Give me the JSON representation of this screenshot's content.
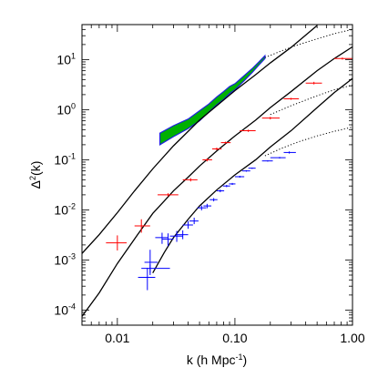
{
  "chart_data": {
    "type": "scatter",
    "x_scale": "log",
    "y_scale": "log",
    "xlabel": "k (h Mpc",
    "xlabel_sup": "-1",
    "xlabel_suffix": ")",
    "ylabel": "Δ",
    "ylabel_sup": "2",
    "ylabel_suffix": "(k)",
    "xlim": [
      0.005,
      1.0
    ],
    "ylim": [
      5e-05,
      50
    ],
    "x_ticks": [
      {
        "value": 0.01,
        "label": "0.01"
      },
      {
        "value": 0.1,
        "label": "0.10"
      },
      {
        "value": 1.0,
        "label": "1.00"
      }
    ],
    "y_ticks": [
      {
        "value": 0.0001,
        "base": "10",
        "exp": "-4"
      },
      {
        "value": 0.001,
        "base": "10",
        "exp": "-3"
      },
      {
        "value": 0.01,
        "base": "10",
        "exp": "-2"
      },
      {
        "value": 0.1,
        "base": "10",
        "exp": "-1"
      },
      {
        "value": 1,
        "base": "10",
        "exp": "0"
      },
      {
        "value": 10,
        "base": "10",
        "exp": "1"
      }
    ],
    "curves": [
      {
        "style": "solid",
        "color": "#000000",
        "points": [
          [
            0.005,
            0.00135
          ],
          [
            0.007,
            0.0032
          ],
          [
            0.01,
            0.0088
          ],
          [
            0.014,
            0.024
          ],
          [
            0.02,
            0.066
          ],
          [
            0.03,
            0.19
          ],
          [
            0.05,
            0.62
          ],
          [
            0.07,
            1.2
          ],
          [
            0.1,
            2.4
          ],
          [
            0.15,
            5.0
          ],
          [
            0.2,
            8.6
          ],
          [
            0.3,
            17.5
          ],
          [
            0.5,
            48
          ]
        ]
      },
      {
        "style": "dotted",
        "color": "#000000",
        "points": [
          [
            0.18,
            11
          ],
          [
            0.25,
            15
          ],
          [
            0.35,
            20
          ],
          [
            0.5,
            26
          ],
          [
            0.7,
            33
          ],
          [
            1.0,
            40
          ]
        ]
      },
      {
        "style": "solid",
        "color": "#000000",
        "points": [
          [
            0.005,
            7.5e-05
          ],
          [
            0.007,
            0.00022
          ],
          [
            0.01,
            0.00085
          ],
          [
            0.015,
            0.0033
          ],
          [
            0.02,
            0.0085
          ],
          [
            0.025,
            0.015
          ],
          [
            0.03,
            0.024
          ],
          [
            0.04,
            0.045
          ],
          [
            0.05,
            0.075
          ],
          [
            0.07,
            0.15
          ],
          [
            0.1,
            0.3
          ],
          [
            0.15,
            0.62
          ],
          [
            0.2,
            1.1
          ],
          [
            0.3,
            2.3
          ],
          [
            0.5,
            6
          ],
          [
            0.7,
            10.5
          ],
          [
            1.0,
            18
          ]
        ]
      },
      {
        "style": "dotted",
        "color": "#000000",
        "points": [
          [
            0.2,
            0.8
          ],
          [
            0.3,
            1.2
          ],
          [
            0.5,
            1.9
          ],
          [
            0.7,
            2.5
          ],
          [
            1.0,
            3.1
          ]
        ]
      },
      {
        "style": "solid",
        "color": "#000000",
        "points": [
          [
            0.02,
            0.00055
          ],
          [
            0.025,
            0.0014
          ],
          [
            0.03,
            0.0028
          ],
          [
            0.04,
            0.0065
          ],
          [
            0.05,
            0.012
          ],
          [
            0.07,
            0.025
          ],
          [
            0.1,
            0.05
          ],
          [
            0.15,
            0.1
          ],
          [
            0.2,
            0.18
          ],
          [
            0.3,
            0.38
          ],
          [
            0.5,
            1.1
          ],
          [
            0.7,
            2.2
          ],
          [
            1.0,
            4.2
          ]
        ]
      },
      {
        "style": "dotted",
        "color": "#000000",
        "points": [
          [
            0.18,
            0.12
          ],
          [
            0.25,
            0.17
          ],
          [
            0.35,
            0.23
          ],
          [
            0.5,
            0.3
          ],
          [
            0.7,
            0.37
          ],
          [
            1.0,
            0.45
          ]
        ]
      }
    ],
    "bands": [
      {
        "color": "#00b000",
        "edge_color": "#2020e0",
        "x": [
          0.023,
          0.03,
          0.04,
          0.05,
          0.06,
          0.07,
          0.08,
          0.09,
          0.1,
          0.12,
          0.14,
          0.16,
          0.18
        ],
        "y_low": [
          0.2,
          0.29,
          0.42,
          0.6,
          0.9,
          1.25,
          1.6,
          2.1,
          2.5,
          3.8,
          5.5,
          7.8,
          10.5
        ],
        "y_high": [
          0.34,
          0.48,
          0.65,
          0.95,
          1.3,
          1.8,
          2.3,
          2.9,
          3.3,
          4.8,
          6.6,
          9,
          12
        ]
      }
    ],
    "series": [
      {
        "color": "#ff0000",
        "points": [
          {
            "x": 0.01,
            "y": 0.0022,
            "x_lo": 0.008,
            "x_hi": 0.012,
            "y_lo": 0.00155,
            "y_hi": 0.0031
          },
          {
            "x": 0.016,
            "y": 0.0048,
            "x_lo": 0.014,
            "x_hi": 0.019,
            "y_lo": 0.0035,
            "y_hi": 0.0065
          },
          {
            "x": 0.027,
            "y": 0.02,
            "x_lo": 0.022,
            "x_hi": 0.033,
            "y_lo": 0.0185,
            "y_hi": 0.0215
          },
          {
            "x": 0.042,
            "y": 0.04,
            "x_lo": 0.036,
            "x_hi": 0.048,
            "y_lo": 0.037,
            "y_hi": 0.043
          },
          {
            "x": 0.058,
            "y": 0.1,
            "x_lo": 0.053,
            "x_hi": 0.064,
            "y_lo": 0.093,
            "y_hi": 0.107
          },
          {
            "x": 0.07,
            "y": 0.165,
            "x_lo": 0.064,
            "x_hi": 0.077,
            "y_lo": 0.155,
            "y_hi": 0.175
          },
          {
            "x": 0.083,
            "y": 0.22,
            "x_lo": 0.076,
            "x_hi": 0.092,
            "y_lo": 0.21,
            "y_hi": 0.23
          },
          {
            "x": 0.13,
            "y": 0.38,
            "x_lo": 0.11,
            "x_hi": 0.15,
            "y_lo": 0.36,
            "y_hi": 0.4
          },
          {
            "x": 0.2,
            "y": 0.68,
            "x_lo": 0.17,
            "x_hi": 0.24,
            "y_lo": 0.64,
            "y_hi": 0.72
          },
          {
            "x": 0.3,
            "y": 1.65,
            "x_lo": 0.26,
            "x_hi": 0.35,
            "y_lo": 1.58,
            "y_hi": 1.72
          },
          {
            "x": 0.47,
            "y": 3.4,
            "x_lo": 0.4,
            "x_hi": 0.55,
            "y_lo": 3.2,
            "y_hi": 3.6
          },
          {
            "x": 0.82,
            "y": 10.5,
            "x_lo": 0.7,
            "x_hi": 1.0,
            "y_lo": 10.0,
            "y_hi": 11.0
          }
        ]
      },
      {
        "color": "#0000ff",
        "points": [
          {
            "x": 0.018,
            "y": 0.00045,
            "x_lo": 0.015,
            "x_hi": 0.021,
            "y_lo": 0.00025,
            "y_hi": 0.0007
          },
          {
            "x": 0.019,
            "y": 0.0009,
            "x_lo": 0.017,
            "x_hi": 0.022,
            "y_lo": 0.0005,
            "y_hi": 0.0016
          },
          {
            "x": 0.019,
            "y": 0.00068,
            "x_lo": 0.016,
            "x_hi": 0.028,
            "y_lo": 0.00055,
            "y_hi": 0.00082
          },
          {
            "x": 0.024,
            "y": 0.0028,
            "x_lo": 0.021,
            "x_hi": 0.027,
            "y_lo": 0.0021,
            "y_hi": 0.0035
          },
          {
            "x": 0.027,
            "y": 0.0026,
            "x_lo": 0.024,
            "x_hi": 0.03,
            "y_lo": 0.0019,
            "y_hi": 0.0034
          },
          {
            "x": 0.032,
            "y": 0.003,
            "x_lo": 0.028,
            "x_hi": 0.036,
            "y_lo": 0.0023,
            "y_hi": 0.0038
          },
          {
            "x": 0.036,
            "y": 0.0032,
            "x_lo": 0.032,
            "x_hi": 0.04,
            "y_lo": 0.0026,
            "y_hi": 0.0039
          },
          {
            "x": 0.04,
            "y": 0.005,
            "x_lo": 0.036,
            "x_hi": 0.044,
            "y_lo": 0.0042,
            "y_hi": 0.006
          },
          {
            "x": 0.045,
            "y": 0.006,
            "x_lo": 0.041,
            "x_hi": 0.049,
            "y_lo": 0.0052,
            "y_hi": 0.007
          },
          {
            "x": 0.052,
            "y": 0.011,
            "x_lo": 0.048,
            "x_hi": 0.057,
            "y_lo": 0.0098,
            "y_hi": 0.0122
          },
          {
            "x": 0.058,
            "y": 0.012,
            "x_lo": 0.054,
            "x_hi": 0.063,
            "y_lo": 0.0108,
            "y_hi": 0.0132
          },
          {
            "x": 0.066,
            "y": 0.016,
            "x_lo": 0.061,
            "x_hi": 0.071,
            "y_lo": 0.0148,
            "y_hi": 0.0172
          },
          {
            "x": 0.075,
            "y": 0.024,
            "x_lo": 0.07,
            "x_hi": 0.081,
            "y_lo": 0.0225,
            "y_hi": 0.0255
          },
          {
            "x": 0.085,
            "y": 0.03,
            "x_lo": 0.079,
            "x_hi": 0.091,
            "y_lo": 0.0284,
            "y_hi": 0.0316
          },
          {
            "x": 0.095,
            "y": 0.033,
            "x_lo": 0.089,
            "x_hi": 0.101,
            "y_lo": 0.0315,
            "y_hi": 0.0345
          },
          {
            "x": 0.11,
            "y": 0.046,
            "x_lo": 0.1,
            "x_hi": 0.12,
            "y_lo": 0.044,
            "y_hi": 0.048
          },
          {
            "x": 0.125,
            "y": 0.06,
            "x_lo": 0.115,
            "x_hi": 0.135,
            "y_lo": 0.058,
            "y_hi": 0.062
          },
          {
            "x": 0.14,
            "y": 0.068,
            "x_lo": 0.13,
            "x_hi": 0.15,
            "y_lo": 0.066,
            "y_hi": 0.07
          },
          {
            "x": 0.19,
            "y": 0.095,
            "x_lo": 0.17,
            "x_hi": 0.21,
            "y_lo": 0.092,
            "y_hi": 0.098
          },
          {
            "x": 0.24,
            "y": 0.11,
            "x_lo": 0.2,
            "x_hi": 0.27,
            "y_lo": 0.106,
            "y_hi": 0.114
          },
          {
            "x": 0.29,
            "y": 0.14,
            "x_lo": 0.26,
            "x_hi": 0.33,
            "y_lo": 0.133,
            "y_hi": 0.147
          }
        ]
      }
    ]
  }
}
